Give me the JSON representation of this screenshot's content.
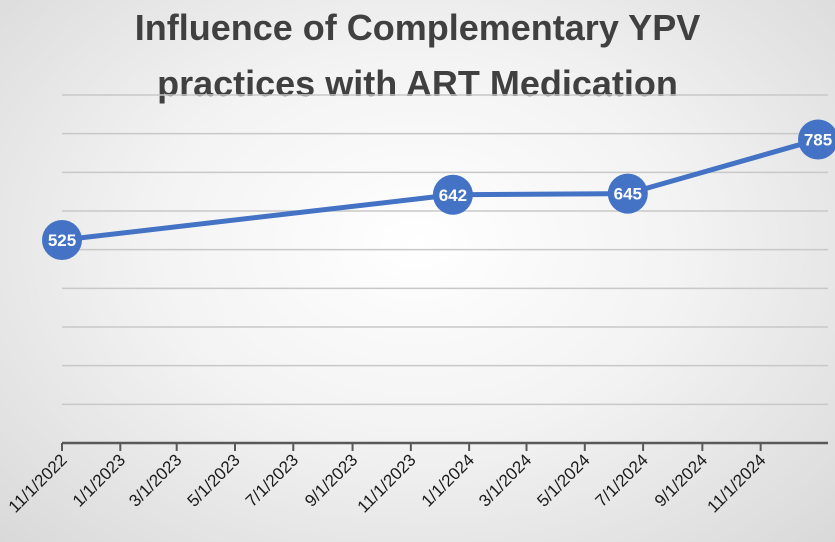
{
  "chart_data": {
    "type": "line",
    "title": [
      "Influence of Complementary YPV",
      "practices with ART Medication"
    ],
    "xlabel": "",
    "ylabel": "",
    "x_ticks": [
      "11/1/2022",
      "1/1/2023",
      "3/1/2023",
      "5/1/2023",
      "7/1/2023",
      "9/1/2023",
      "11/1/2023",
      "1/1/2024",
      "3/1/2024",
      "5/1/2024",
      "7/1/2024",
      "9/1/2024",
      "11/1/2024"
    ],
    "x_range": [
      "2022-11-01",
      "2024-12-31"
    ],
    "ylim": [
      0,
      900
    ],
    "y_gridlines": [
      100,
      200,
      300,
      400,
      500,
      600,
      700,
      800,
      900
    ],
    "y_axis_labels_shown": false,
    "grid": true,
    "legend": "none",
    "series": [
      {
        "color": "#4472c4",
        "points": [
          {
            "x": "2022-11-01",
            "y": 525
          },
          {
            "x": "2023-12-15",
            "y": 642
          },
          {
            "x": "2024-06-15",
            "y": 645
          },
          {
            "x": "2024-12-31",
            "y": 785
          }
        ]
      }
    ]
  }
}
